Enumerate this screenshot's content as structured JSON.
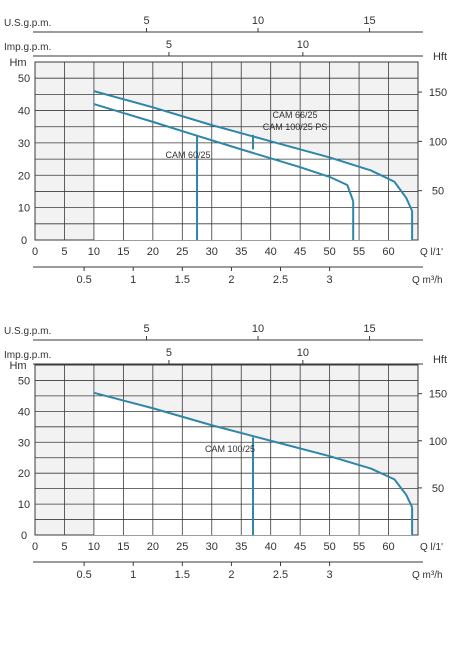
{
  "colors": {
    "curve": "#2e86a8",
    "grid": "#3a3a3a",
    "plot_bg": "#f2f2f2",
    "white_bg": "#ffffff",
    "text": "#333333"
  },
  "chart_data": [
    {
      "type": "line",
      "title": "",
      "xlabel": "Q l/1'",
      "ylabel": "Hm",
      "xlim": [
        0,
        65
      ],
      "ylim": [
        0,
        55
      ],
      "grid": true,
      "y_ticks": [
        0,
        10,
        20,
        30,
        40,
        50
      ],
      "x_ticks": [
        0,
        5,
        10,
        15,
        20,
        25,
        30,
        35,
        40,
        45,
        50,
        55,
        60
      ],
      "axis_labels": {
        "top_flow": "U.S.g.p.m.",
        "mid_flow": "Imp.g.p.m.",
        "left_head": "Hm",
        "right_head": "Hft",
        "bottom_flow_lpm": "Q  l/1'",
        "bottom_flow_m3h": "Q  m³/h"
      },
      "usgpm_ticks": [
        5,
        10,
        15
      ],
      "impgpm_ticks": [
        5,
        10
      ],
      "m3h_ticks": [
        "0.5",
        "1",
        "1.5",
        "2",
        "2.5",
        "3"
      ],
      "hft_ticks": [
        50,
        100,
        150
      ],
      "series": [
        {
          "name": "CAM 60/25",
          "x": [
            10,
            20,
            27,
            35,
            45,
            50,
            53,
            54
          ],
          "y": [
            42,
            36.5,
            32.5,
            28,
            22.5,
            19.5,
            17,
            12
          ],
          "shaded_limit_x": 27.5
        },
        {
          "name": "CAM 66/25",
          "name2": "CAM 100/25 PS",
          "x": [
            10,
            20,
            30,
            40,
            50,
            57,
            61,
            63,
            64
          ],
          "y": [
            46,
            41,
            35.5,
            30.5,
            25.5,
            21.5,
            18,
            13,
            9
          ],
          "shaded_limit_x": 63
        }
      ],
      "labels": [
        "CAM 66/25",
        "CAM 100/25 PS",
        "CAM 60/25"
      ],
      "annotation_marker_x": 37
    },
    {
      "type": "line",
      "title": "",
      "xlabel": "Q l/1'",
      "ylabel": "Hm",
      "xlim": [
        0,
        65
      ],
      "ylim": [
        0,
        55
      ],
      "grid": true,
      "y_ticks": [
        0,
        10,
        20,
        30,
        40,
        50
      ],
      "x_ticks": [
        0,
        5,
        10,
        15,
        20,
        25,
        30,
        35,
        40,
        45,
        50,
        55,
        60
      ],
      "axis_labels": {
        "top_flow": "U.S.g.p.m.",
        "mid_flow": "Imp.g.p.m.",
        "left_head": "Hm",
        "right_head": "Hft",
        "bottom_flow_lpm": "Q  l/1'",
        "bottom_flow_m3h": "Q  m³/h"
      },
      "usgpm_ticks": [
        5,
        10,
        15
      ],
      "impgpm_ticks": [
        5,
        10
      ],
      "m3h_ticks": [
        "0.5",
        "1",
        "1.5",
        "2",
        "2.5",
        "3"
      ],
      "hft_ticks": [
        50,
        100,
        150
      ],
      "series": [
        {
          "name": "CAM 100/25",
          "x": [
            10,
            20,
            30,
            40,
            50,
            57,
            61,
            63,
            64
          ],
          "y": [
            46,
            41,
            35.5,
            30.5,
            25.5,
            21.5,
            18,
            13,
            9
          ],
          "shaded_limit_x": 63
        }
      ],
      "labels": [
        "CAM 100/25"
      ],
      "vertical_marker_x": 37
    }
  ]
}
